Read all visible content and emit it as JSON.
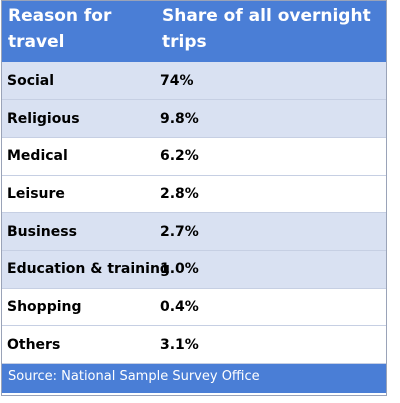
{
  "chart_data": {
    "type": "table",
    "columns": [
      "Reason for travel",
      "Share of all overnight trips"
    ],
    "rows": [
      {
        "reason": "Social",
        "share": "74%"
      },
      {
        "reason": "Religious",
        "share": "9.8%"
      },
      {
        "reason": "Medical",
        "share": "6.2%"
      },
      {
        "reason": "Leisure",
        "share": "2.8%"
      },
      {
        "reason": "Business",
        "share": "2.7%"
      },
      {
        "reason": "Education & training",
        "share": "1.0%"
      },
      {
        "reason": "Shopping",
        "share": "0.4%"
      },
      {
        "reason": "Others",
        "share": "3.1%"
      }
    ],
    "source": "Source: National Sample Survey Office"
  },
  "colors": {
    "header_bg": "#4a7ed6",
    "shaded_row": "#d9e1f2",
    "plain_row": "#ffffff"
  }
}
